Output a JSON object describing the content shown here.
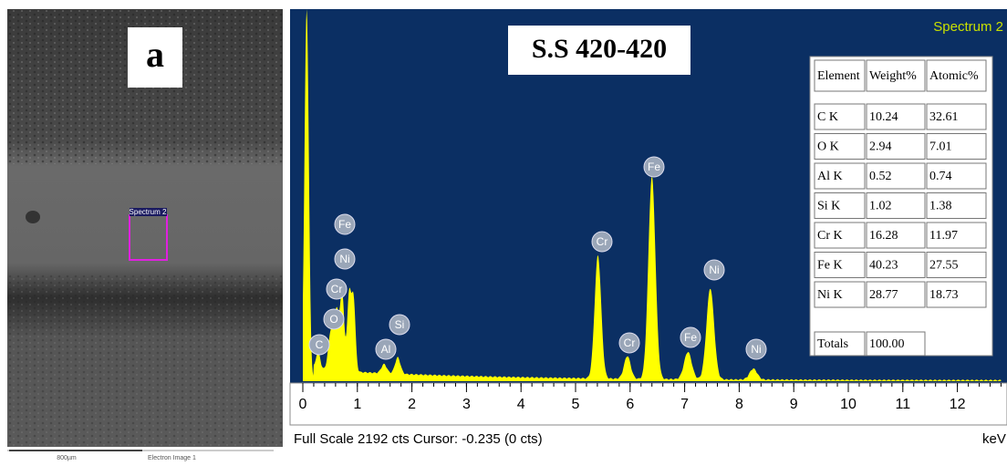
{
  "panel_label": "a",
  "sem_image": {
    "region_label": "Spectrum 2",
    "scale_bar": "800µm",
    "caption": "Electron Image 1"
  },
  "spectrum": {
    "title": "S.S 420-420",
    "name": "Spectrum 2",
    "x_ticks": [
      "0",
      "1",
      "2",
      "3",
      "4",
      "5",
      "6",
      "7",
      "8",
      "9",
      "10",
      "11",
      "12"
    ],
    "x_unit": "keV",
    "status": "Full Scale 2192 cts Cursor: -0.235  (0 cts)",
    "peak_labels": [
      "C",
      "O",
      "Cr",
      "Ni",
      "Fe",
      "Al",
      "Si",
      "Cr",
      "Cr",
      "Fe",
      "Fe",
      "Ni",
      "Ni"
    ]
  },
  "table": {
    "header": [
      "Element",
      "Weight%",
      "Atomic%"
    ],
    "rows": [
      [
        "C K",
        "10.24",
        "32.61"
      ],
      [
        "O K",
        "2.94",
        "7.01"
      ],
      [
        "Al K",
        "0.52",
        "0.74"
      ],
      [
        "Si K",
        "1.02",
        "1.38"
      ],
      [
        "Cr K",
        "16.28",
        "11.97"
      ],
      [
        "Fe K",
        "40.23",
        "27.55"
      ],
      [
        "Ni K",
        "28.77",
        "18.73"
      ]
    ],
    "total": [
      "Totals",
      "100.00"
    ]
  }
}
